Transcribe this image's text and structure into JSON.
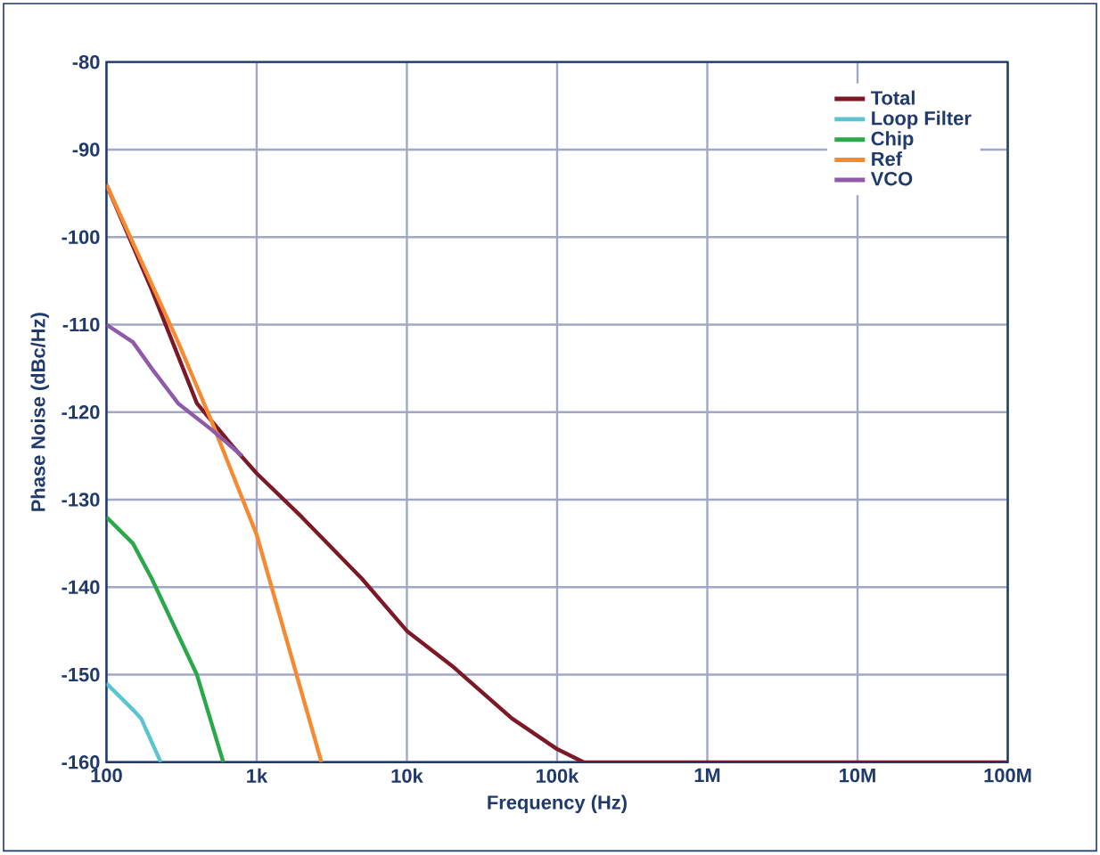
{
  "chart_data": {
    "type": "line",
    "xlabel": "Frequency (Hz)",
    "ylabel": "Phase Noise (dBc/Hz)",
    "log": "x",
    "grid": true,
    "legend": "top right",
    "xlim": [
      100,
      100000000
    ],
    "ylim": [
      -160,
      -80
    ],
    "xticks": [
      {
        "value": 100,
        "label": "100"
      },
      {
        "value": 1000,
        "label": "1k"
      },
      {
        "value": 10000,
        "label": "10k"
      },
      {
        "value": 100000,
        "label": "100k"
      },
      {
        "value": 1000000,
        "label": "1M"
      },
      {
        "value": 10000000,
        "label": "10M"
      },
      {
        "value": 100000000,
        "label": "100M"
      }
    ],
    "yticks": [
      -160,
      -150,
      -140,
      -130,
      -120,
      -110,
      -100,
      -90,
      -80
    ],
    "series": [
      {
        "name": "Total",
        "color": "#7b1a26",
        "x": [
          100,
          200,
          400,
          700,
          1000,
          2000,
          5000,
          10000,
          20000,
          50000,
          100000,
          150000,
          1000000,
          100000000
        ],
        "values": [
          -94,
          -106,
          -119,
          -124,
          -127,
          -132,
          -139,
          -145,
          -149,
          -155,
          -158.5,
          -160,
          -160,
          -160
        ]
      },
      {
        "name": "Loop Filter",
        "color": "#5bc4d1",
        "x": [
          100,
          150,
          170,
          230
        ],
        "values": [
          -151,
          -154,
          -155,
          -160
        ]
      },
      {
        "name": "Chip",
        "color": "#2aa84a",
        "x": [
          100,
          150,
          200,
          400,
          600
        ],
        "values": [
          -132,
          -135,
          -139,
          -150,
          -160
        ]
      },
      {
        "name": "Ref",
        "color": "#f58a32",
        "x": [
          100,
          300,
          500,
          1000,
          2700
        ],
        "values": [
          -94,
          -112,
          -121,
          -134,
          -160
        ]
      },
      {
        "name": "VCO",
        "color": "#8e5ba8",
        "x": [
          100,
          150,
          200,
          300,
          500,
          800
        ],
        "values": [
          -110,
          -112,
          -115,
          -119,
          -122,
          -125
        ]
      }
    ]
  }
}
